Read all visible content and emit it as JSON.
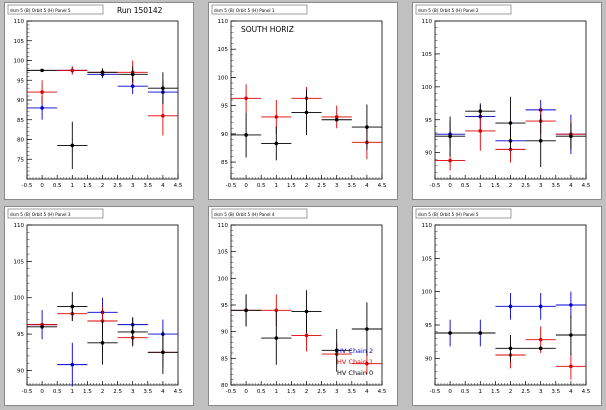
{
  "window": {
    "background": "#c0c0c0",
    "colors": {
      "chain0": "#000000",
      "chain1": "#dd0000",
      "chain2": "#0000cc"
    }
  },
  "chart_data": [
    {
      "type": "scatter",
      "id": "pad1",
      "pad_title": "dsm 5 (B) Orbit 5 (H) Panel 5",
      "title": "Run 150142",
      "xlim": [
        -0.5,
        4.5
      ],
      "ylim": [
        70,
        110
      ],
      "x_ticks": [
        "-0.5",
        "0",
        "0.5",
        "1",
        "1.5",
        "2",
        "2.5",
        "3",
        "3.5",
        "4",
        "4.5"
      ],
      "y_ticks": [
        "75",
        "80",
        "85",
        "90",
        "95",
        "100",
        "105",
        "110"
      ],
      "y_tick_values": [
        75,
        80,
        85,
        90,
        95,
        100,
        105,
        110
      ],
      "series": [
        {
          "chain": "chain2",
          "points": [
            {
              "x": 0,
              "y": 88,
              "ex": 0.5,
              "ey": 3
            },
            {
              "x": 1,
              "y": 97.5,
              "ex": 0.5,
              "ey": 1
            },
            {
              "x": 2,
              "y": 96.5,
              "ex": 0.5,
              "ey": 1
            },
            {
              "x": 3,
              "y": 93.5,
              "ex": 0.5,
              "ey": 2
            },
            {
              "x": 4,
              "y": 92,
              "ex": 0.5,
              "ey": 3
            }
          ]
        },
        {
          "chain": "chain1",
          "points": [
            {
              "x": 0,
              "y": 92,
              "ex": 0.5,
              "ey": 3
            },
            {
              "x": 1,
              "y": 97.5,
              "ex": 0.5,
              "ey": 1
            },
            {
              "x": 2,
              "y": 97,
              "ex": 0.5,
              "ey": 1
            },
            {
              "x": 3,
              "y": 97,
              "ex": 0.5,
              "ey": 3
            },
            {
              "x": 4,
              "y": 86,
              "ex": 0.5,
              "ey": 5
            }
          ]
        },
        {
          "chain": "chain0",
          "points": [
            {
              "x": 0,
              "y": 97.5,
              "ex": 0.5,
              "ey": 0
            },
            {
              "x": 1,
              "y": 78.5,
              "ex": 0.5,
              "ey": 6
            },
            {
              "x": 2,
              "y": 97,
              "ex": 0.5,
              "ey": 1
            },
            {
              "x": 3,
              "y": 96.5,
              "ex": 0.5,
              "ey": 2
            },
            {
              "x": 4,
              "y": 93,
              "ex": 0.5,
              "ey": 4
            }
          ]
        }
      ]
    },
    {
      "type": "scatter",
      "id": "pad2",
      "pad_title": "dsm 5 (B) Orbit 5 (H) Panel 1",
      "title": "SOUTH HORIZ",
      "xlim": [
        -0.5,
        4.5
      ],
      "ylim": [
        82,
        110
      ],
      "x_ticks": [
        "-0.5",
        "0",
        "0.5",
        "1",
        "1.5",
        "2",
        "2.5",
        "3",
        "3.5",
        "4",
        "4.5"
      ],
      "y_ticks": [
        "85",
        "90",
        "95",
        "100",
        "105",
        "110"
      ],
      "y_tick_values": [
        85,
        90,
        95,
        100,
        105,
        110
      ],
      "series": [
        {
          "chain": "chain1",
          "points": [
            {
              "x": 0,
              "y": 96.3,
              "ex": 0.5,
              "ey": 2.5
            },
            {
              "x": 1,
              "y": 93,
              "ex": 0.5,
              "ey": 3
            },
            {
              "x": 2,
              "y": 96.3,
              "ex": 0.5,
              "ey": 2
            },
            {
              "x": 3,
              "y": 93,
              "ex": 0.5,
              "ey": 2
            },
            {
              "x": 4,
              "y": 88.5,
              "ex": 0.5,
              "ey": 3
            }
          ]
        },
        {
          "chain": "chain0",
          "points": [
            {
              "x": 0,
              "y": 89.8,
              "ex": 0.5,
              "ey": 4
            },
            {
              "x": 1,
              "y": 88.3,
              "ex": 0.5,
              "ey": 3
            },
            {
              "x": 2,
              "y": 93.8,
              "ex": 0.5,
              "ey": 4
            },
            {
              "x": 3,
              "y": 92.5,
              "ex": 0.5,
              "ey": 0
            },
            {
              "x": 4,
              "y": 91.2,
              "ex": 0.5,
              "ey": 4
            }
          ]
        }
      ]
    },
    {
      "type": "scatter",
      "id": "pad3",
      "pad_title": "dsm 5 (B) Orbit 5 (H) Panel 2",
      "title": "",
      "xlim": [
        -0.5,
        4.5
      ],
      "ylim": [
        86,
        110
      ],
      "x_ticks": [
        "-0.5",
        "0",
        "0.5",
        "1",
        "1.5",
        "2",
        "2.5",
        "3",
        "3.5",
        "4",
        "4.5"
      ],
      "y_ticks": [
        "90",
        "95",
        "100",
        "105",
        "110"
      ],
      "y_tick_values": [
        90,
        95,
        100,
        105,
        110
      ],
      "series": [
        {
          "chain": "chain2",
          "points": [
            {
              "x": 0,
              "y": 92.8,
              "ex": 0.5,
              "ey": 2
            },
            {
              "x": 1,
              "y": 95.5,
              "ex": 0.5,
              "ey": 2
            },
            {
              "x": 2,
              "y": 91.8,
              "ex": 0.5,
              "ey": 2
            },
            {
              "x": 3,
              "y": 96.5,
              "ex": 0.5,
              "ey": 1.5
            },
            {
              "x": 4,
              "y": 92.8,
              "ex": 0.5,
              "ey": 3
            }
          ]
        },
        {
          "chain": "chain1",
          "points": [
            {
              "x": 0,
              "y": 88.8,
              "ex": 0.5,
              "ey": 1.5
            },
            {
              "x": 1,
              "y": 93.3,
              "ex": 0.5,
              "ey": 3
            },
            {
              "x": 2,
              "y": 90.5,
              "ex": 0.5,
              "ey": 2
            },
            {
              "x": 3,
              "y": 94.8,
              "ex": 0.5,
              "ey": 2
            },
            {
              "x": 4,
              "y": 92.8,
              "ex": 0.5,
              "ey": 2
            }
          ]
        },
        {
          "chain": "chain0",
          "points": [
            {
              "x": 0,
              "y": 92.5,
              "ex": 0.5,
              "ey": 3
            },
            {
              "x": 1,
              "y": 96.3,
              "ex": 0.5,
              "ey": 1
            },
            {
              "x": 2,
              "y": 94.5,
              "ex": 0.5,
              "ey": 4
            },
            {
              "x": 3,
              "y": 91.8,
              "ex": 0.5,
              "ey": 4
            },
            {
              "x": 4,
              "y": 92.5,
              "ex": 0.5,
              "ey": 2
            }
          ]
        }
      ]
    },
    {
      "type": "scatter",
      "id": "pad4",
      "pad_title": "dsm 5 (B) Orbit 5 (H) Panel 3",
      "title": "",
      "xlim": [
        -0.5,
        4.5
      ],
      "ylim": [
        88,
        110
      ],
      "x_ticks": [
        "-0.5",
        "0",
        "0.5",
        "1",
        "1.5",
        "2",
        "2.5",
        "3",
        "3.5",
        "4",
        "4.5"
      ],
      "y_ticks": [
        "90",
        "95",
        "100",
        "105",
        "110"
      ],
      "y_tick_values": [
        90,
        95,
        100,
        105,
        110
      ],
      "series": [
        {
          "chain": "chain2",
          "points": [
            {
              "x": 0,
              "y": 96.3,
              "ex": 0.5,
              "ey": 2
            },
            {
              "x": 1,
              "y": 90.8,
              "ex": 0.5,
              "ey": 3
            },
            {
              "x": 2,
              "y": 98,
              "ex": 0.5,
              "ey": 2
            },
            {
              "x": 3,
              "y": 96.3,
              "ex": 0.5,
              "ey": 1
            },
            {
              "x": 4,
              "y": 95,
              "ex": 0.5,
              "ey": 2
            }
          ]
        },
        {
          "chain": "chain1",
          "points": [
            {
              "x": 0,
              "y": 96.3,
              "ex": 0.5,
              "ey": 0
            },
            {
              "x": 1,
              "y": 97.8,
              "ex": 0.5,
              "ey": 1
            },
            {
              "x": 2,
              "y": 96.8,
              "ex": 0.5,
              "ey": 2
            },
            {
              "x": 3,
              "y": 94.5,
              "ex": 0.5,
              "ey": 1
            },
            {
              "x": 4,
              "y": 92.5,
              "ex": 0.5,
              "ey": 2
            }
          ]
        },
        {
          "chain": "chain0",
          "points": [
            {
              "x": 0,
              "y": 96,
              "ex": 0.5,
              "ey": 0
            },
            {
              "x": 1,
              "y": 98.8,
              "ex": 0.5,
              "ey": 2
            },
            {
              "x": 2,
              "y": 93.8,
              "ex": 0.5,
              "ey": 3
            },
            {
              "x": 3,
              "y": 95.3,
              "ex": 0.5,
              "ey": 2
            },
            {
              "x": 4,
              "y": 92.5,
              "ex": 0.5,
              "ey": 3
            }
          ]
        }
      ]
    },
    {
      "type": "scatter",
      "id": "pad5",
      "pad_title": "dsm 5 (B) Orbit 5 (H) Panel 4",
      "title": "",
      "xlim": [
        -0.5,
        4.5
      ],
      "ylim": [
        80,
        110
      ],
      "x_ticks": [
        "-0.5",
        "0",
        "0.5",
        "1",
        "1.5",
        "2",
        "2.5",
        "3",
        "3.5",
        "4",
        "4.5"
      ],
      "y_ticks": [
        "80",
        "85",
        "90",
        "95",
        "100",
        "105",
        "110"
      ],
      "y_tick_values": [
        80,
        85,
        90,
        95,
        100,
        105,
        110
      ],
      "legend": {
        "placement": "bottom-right",
        "entries": [
          {
            "label": "HV Chain 2",
            "chain": "chain2"
          },
          {
            "label": "HV Chain 1",
            "chain": "chain1"
          },
          {
            "label": "HV Chain 0",
            "chain": "chain0"
          }
        ]
      },
      "series": [
        {
          "chain": "chain1",
          "points": [
            {
              "x": 0,
              "y": 94,
              "ex": 0.5,
              "ey": 3
            },
            {
              "x": 1,
              "y": 94,
              "ex": 0.5,
              "ey": 3
            },
            {
              "x": 2,
              "y": 89.3,
              "ex": 0.5,
              "ey": 3
            },
            {
              "x": 3,
              "y": 85.8,
              "ex": 0.5,
              "ey": 2
            },
            {
              "x": 4,
              "y": 84,
              "ex": 0.5,
              "ey": 2
            }
          ]
        },
        {
          "chain": "chain0",
          "points": [
            {
              "x": 0,
              "y": 94,
              "ex": 0.5,
              "ey": 3
            },
            {
              "x": 1,
              "y": 88.8,
              "ex": 0.5,
              "ey": 5
            },
            {
              "x": 2,
              "y": 93.8,
              "ex": 0.5,
              "ey": 4
            },
            {
              "x": 3,
              "y": 86.5,
              "ex": 0.5,
              "ey": 4
            },
            {
              "x": 4,
              "y": 90.5,
              "ex": 0.5,
              "ey": 5
            }
          ]
        }
      ]
    },
    {
      "type": "scatter",
      "id": "pad6",
      "pad_title": "dsm 5 (B) Orbit 5 (H) Panel 5",
      "title": "",
      "xlim": [
        -0.5,
        4.5
      ],
      "ylim": [
        86,
        110
      ],
      "x_ticks": [
        "-0.5",
        "0",
        "0.5",
        "1",
        "1.5",
        "2",
        "2.5",
        "3",
        "3.5",
        "4",
        "4.5"
      ],
      "y_ticks": [
        "90",
        "95",
        "100",
        "105",
        "110"
      ],
      "y_tick_values": [
        90,
        95,
        100,
        105,
        110
      ],
      "series": [
        {
          "chain": "chain2",
          "points": [
            {
              "x": 0,
              "y": 93.8,
              "ex": 0.5,
              "ey": 2
            },
            {
              "x": 1,
              "y": 93.8,
              "ex": 0.5,
              "ey": 2
            },
            {
              "x": 2,
              "y": 97.8,
              "ex": 0.5,
              "ey": 2
            },
            {
              "x": 3,
              "y": 97.8,
              "ex": 0.5,
              "ey": 2
            },
            {
              "x": 4,
              "y": 98,
              "ex": 0.5,
              "ey": 2
            }
          ]
        },
        {
          "chain": "chain1",
          "points": [
            {
              "x": 0,
              "y": 93.8,
              "ex": 0.5,
              "ey": 0
            },
            {
              "x": 1,
              "y": 93.8,
              "ex": 0.5,
              "ey": 0
            },
            {
              "x": 2,
              "y": 90.5,
              "ex": 0.5,
              "ey": 2
            },
            {
              "x": 3,
              "y": 92.8,
              "ex": 0.5,
              "ey": 2
            },
            {
              "x": 4,
              "y": 88.8,
              "ex": 0.5,
              "ey": 2
            }
          ]
        },
        {
          "chain": "chain0",
          "points": [
            {
              "x": 0,
              "y": 93.8,
              "ex": 0.5,
              "ey": 0
            },
            {
              "x": 1,
              "y": 93.8,
              "ex": 0.5,
              "ey": 0
            },
            {
              "x": 2,
              "y": 91.5,
              "ex": 0.5,
              "ey": 2
            },
            {
              "x": 3,
              "y": 91.5,
              "ex": 0.5,
              "ey": 0
            },
            {
              "x": 4,
              "y": 93.5,
              "ex": 0.5,
              "ey": 3
            }
          ]
        }
      ]
    }
  ]
}
